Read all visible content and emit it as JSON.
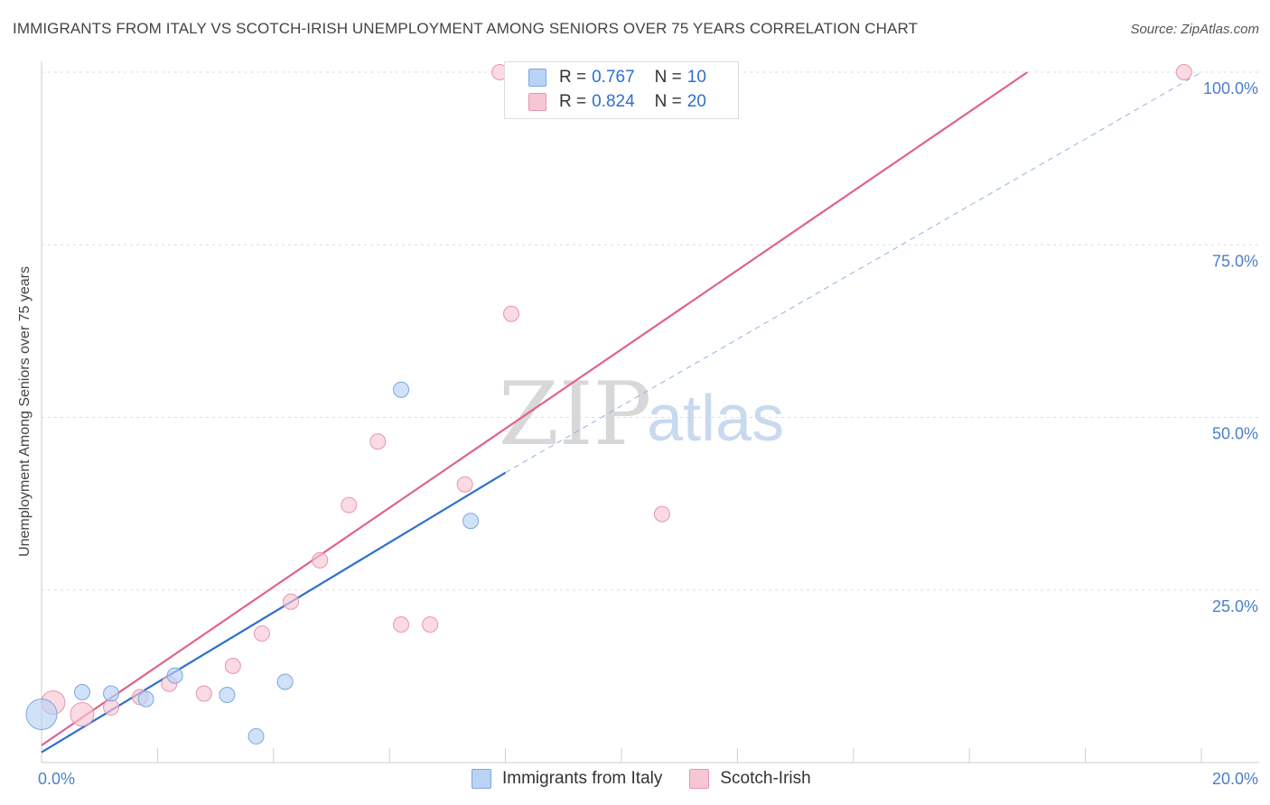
{
  "title": "IMMIGRANTS FROM ITALY VS SCOTCH-IRISH UNEMPLOYMENT AMONG SENIORS OVER 75 YEARS CORRELATION CHART",
  "source": "Source: ZipAtlas.com",
  "watermark": {
    "zip": "ZIP",
    "atlas": "atlas"
  },
  "legend": {
    "italy": {
      "r_label": "R =",
      "r_value": "0.767",
      "n_label": "N =",
      "n_value": "10"
    },
    "scotch": {
      "r_label": "R =",
      "r_value": "0.824",
      "n_label": "N =",
      "n_value": "20"
    }
  },
  "colors": {
    "italy_fill": "#b9d3f5",
    "italy_stroke": "#7aa6e0",
    "italy_line": "#2f6fd0",
    "scotch_fill": "#f7c6d4",
    "scotch_stroke": "#e895ae",
    "scotch_line": "#e0628a",
    "grid": "#dddddd",
    "tick_text": "#4a7fcb"
  },
  "chart_data": {
    "type": "scatter",
    "title": "IMMIGRANTS FROM ITALY VS SCOTCH-IRISH UNEMPLOYMENT AMONG SENIORS OVER 75 YEARS CORRELATION CHART",
    "xlabel": "",
    "ylabel": "Unemployment Among Seniors over 75 years",
    "xlim": [
      0,
      20
    ],
    "ylim": [
      0,
      100
    ],
    "x_tick_labels": [
      "0.0%",
      "20.0%"
    ],
    "y_ticks": [
      25,
      50,
      75,
      100
    ],
    "y_tick_labels": [
      "25.0%",
      "50.0%",
      "75.0%",
      "100.0%"
    ],
    "grid": true,
    "legend_position": "top-center",
    "series": [
      {
        "name": "Immigrants from Italy",
        "points": [
          {
            "x": 0.0,
            "y": 7.0,
            "s": 3
          },
          {
            "x": 0.7,
            "y": 10.2,
            "s": 1
          },
          {
            "x": 1.2,
            "y": 10.0,
            "s": 1
          },
          {
            "x": 1.8,
            "y": 9.2,
            "s": 1
          },
          {
            "x": 2.3,
            "y": 12.6,
            "s": 1
          },
          {
            "x": 3.2,
            "y": 9.8,
            "s": 1
          },
          {
            "x": 3.7,
            "y": 3.8,
            "s": 1
          },
          {
            "x": 4.2,
            "y": 11.7,
            "s": 1
          },
          {
            "x": 6.2,
            "y": 54.0,
            "s": 1
          },
          {
            "x": 7.4,
            "y": 35.0,
            "s": 1
          }
        ],
        "trend": {
          "x0": 0.0,
          "y0": 1.5,
          "x1": 8.0,
          "y1": 42.0,
          "dash_to_x": 20.0,
          "dash_to_y": 100.0
        }
      },
      {
        "name": "Scotch-Irish",
        "points": [
          {
            "x": 0.2,
            "y": 8.7,
            "s": 2
          },
          {
            "x": 0.7,
            "y": 7.0,
            "s": 2
          },
          {
            "x": 1.2,
            "y": 8.0,
            "s": 1
          },
          {
            "x": 1.7,
            "y": 9.5,
            "s": 1
          },
          {
            "x": 2.2,
            "y": 11.4,
            "s": 1
          },
          {
            "x": 2.8,
            "y": 10.0,
            "s": 1
          },
          {
            "x": 3.3,
            "y": 14.0,
            "s": 1
          },
          {
            "x": 3.8,
            "y": 18.7,
            "s": 1
          },
          {
            "x": 4.3,
            "y": 23.3,
            "s": 1
          },
          {
            "x": 4.8,
            "y": 29.3,
            "s": 1
          },
          {
            "x": 5.3,
            "y": 37.3,
            "s": 1
          },
          {
            "x": 5.8,
            "y": 46.5,
            "s": 1
          },
          {
            "x": 6.2,
            "y": 20.0,
            "s": 1
          },
          {
            "x": 6.7,
            "y": 20.0,
            "s": 1
          },
          {
            "x": 7.3,
            "y": 40.3,
            "s": 1
          },
          {
            "x": 7.9,
            "y": 100.0,
            "s": 1
          },
          {
            "x": 8.1,
            "y": 65.0,
            "s": 1
          },
          {
            "x": 10.7,
            "y": 36.0,
            "s": 1
          },
          {
            "x": 11.3,
            "y": 100.0,
            "s": 1
          },
          {
            "x": 19.7,
            "y": 100.0,
            "s": 1
          }
        ],
        "trend": {
          "x0": 0.0,
          "y0": 2.5,
          "x1": 17.0,
          "y1": 100.0
        }
      }
    ]
  }
}
